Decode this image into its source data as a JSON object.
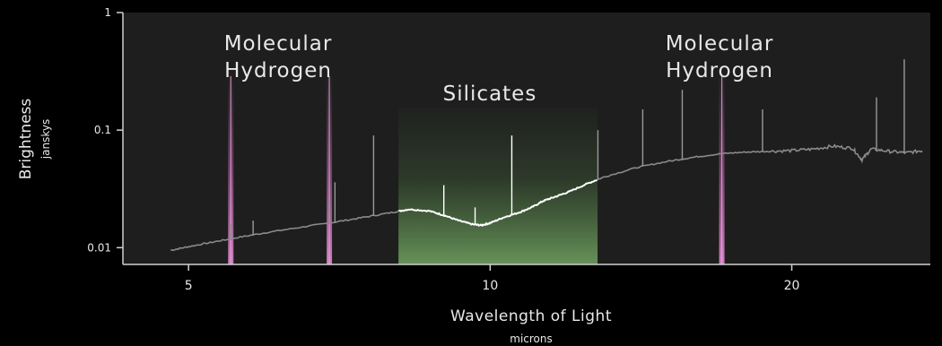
{
  "chart_data": {
    "type": "line",
    "xlabel": "Wavelength of Light",
    "xunit": "microns",
    "ylabel": "Brightness",
    "yunit": "janskys",
    "xscale": "log",
    "yscale": "log",
    "xlim": [
      4.3,
      27.5
    ],
    "ylim": [
      0.0072,
      1
    ],
    "xticks": [
      5,
      10,
      20
    ],
    "xtick_labels": [
      "5",
      "10",
      "20"
    ],
    "yticks": [
      0.01,
      0.1,
      1
    ],
    "ytick_labels": [
      "0.01",
      "0.1",
      "1"
    ],
    "regions": [
      {
        "label": "Molecular Hydrogen",
        "lines": [
          "Molecular",
          "Hydrogen"
        ],
        "type": "emission-lines",
        "x": [
          5.51,
          6.91
        ],
        "color": "#d97fc8"
      },
      {
        "label": "Silicates",
        "lines": [
          "Silicates"
        ],
        "type": "band",
        "x_range": [
          8.1,
          12.8
        ],
        "color": "#7bbf6a"
      },
      {
        "label": "Molecular Hydrogen",
        "lines": [
          "Molecular",
          "Hydrogen"
        ],
        "type": "emission-lines",
        "x": [
          17.03
        ],
        "color": "#d97fc8"
      }
    ],
    "series": [
      {
        "x": [
          4.8,
          5.0,
          5.3,
          5.6,
          6.0,
          6.5,
          7.0,
          7.5,
          8.0,
          8.3,
          8.7,
          9.0,
          9.3,
          9.6,
          9.8,
          10.0,
          10.3,
          10.7,
          11.0,
          11.3,
          11.6,
          12.0,
          12.5,
          13.0,
          14.0,
          15.0,
          16.0,
          17.0,
          18.0,
          19.0,
          20.0,
          21.0,
          22.0,
          23.0,
          23.5,
          24.0,
          25.0,
          26.0,
          27.0
        ],
        "y": [
          0.0095,
          0.0102,
          0.0112,
          0.0122,
          0.0135,
          0.015,
          0.0165,
          0.0182,
          0.02,
          0.0212,
          0.0205,
          0.0188,
          0.017,
          0.0158,
          0.0155,
          0.0162,
          0.018,
          0.02,
          0.022,
          0.025,
          0.027,
          0.03,
          0.035,
          0.04,
          0.048,
          0.054,
          0.059,
          0.063,
          0.065,
          0.066,
          0.067,
          0.069,
          0.073,
          0.07,
          0.056,
          0.069,
          0.066,
          0.064,
          0.067
        ]
      }
    ],
    "emission_lines": [
      {
        "x": 5.51,
        "peak": 0.016
      },
      {
        "x": 5.8,
        "peak": 0.017
      },
      {
        "x": 6.91,
        "peak": 0.026
      },
      {
        "x": 7.0,
        "peak": 0.036
      },
      {
        "x": 7.65,
        "peak": 0.09
      },
      {
        "x": 8.99,
        "peak": 0.034
      },
      {
        "x": 9.66,
        "peak": 0.022
      },
      {
        "x": 10.51,
        "peak": 0.09
      },
      {
        "x": 12.81,
        "peak": 0.1
      },
      {
        "x": 14.2,
        "peak": 0.15
      },
      {
        "x": 15.55,
        "peak": 0.22
      },
      {
        "x": 18.7,
        "peak": 0.15
      },
      {
        "x": 25.9,
        "peak": 0.4
      },
      {
        "x": 24.3,
        "peak": 0.19
      }
    ]
  }
}
